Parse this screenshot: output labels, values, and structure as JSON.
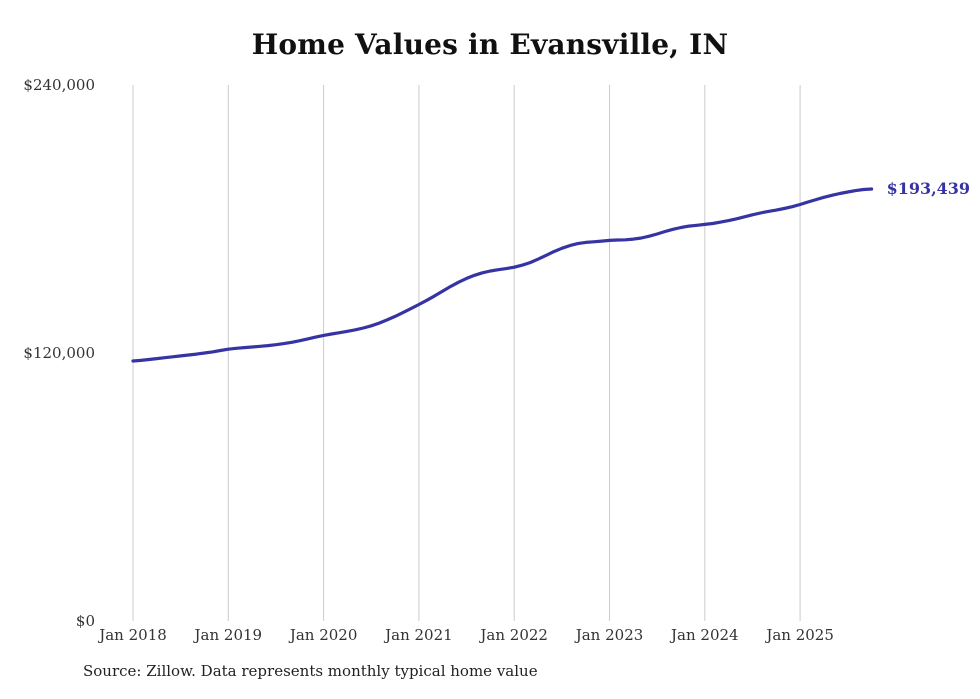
{
  "page": {
    "title": "Home Values in Evansville, IN",
    "source_note": "Source: Zillow. Data represents monthly typical home value"
  },
  "chart_data": {
    "type": "line",
    "title": "Home Values in Evansville, IN",
    "series_name": "Monthly typical home value",
    "start_month": "Jan 2018",
    "end_month": "Oct 2025",
    "x_tick_labels": [
      "Jan 2018",
      "Jan 2019",
      "Jan 2020",
      "Jan 2021",
      "Jan 2022",
      "Jan 2023",
      "Jan 2024",
      "Jan 2025"
    ],
    "y_tick_labels": [
      "$240,000",
      "$120,000",
      "$0"
    ],
    "ylim": [
      0,
      240000
    ],
    "grid": "vertical-only",
    "legend": "none",
    "line_color": "#3634a3",
    "grid_color": "#cccccc",
    "end_label": "$193,439",
    "end_value": 193439,
    "values": [
      116400,
      116700,
      117100,
      117500,
      117900,
      118300,
      118700,
      119100,
      119500,
      120000,
      120500,
      121100,
      121700,
      122100,
      122400,
      122700,
      123000,
      123300,
      123700,
      124200,
      124800,
      125500,
      126300,
      127100,
      127900,
      128500,
      129100,
      129700,
      130400,
      131200,
      132200,
      133400,
      134800,
      136400,
      138100,
      139900,
      141700,
      143600,
      145600,
      147700,
      149800,
      151700,
      153400,
      154800,
      155900,
      156700,
      157300,
      157800,
      158400,
      159300,
      160500,
      162000,
      163700,
      165400,
      166900,
      168100,
      169000,
      169500,
      169800,
      170100,
      170400,
      170600,
      170700,
      171000,
      171500,
      172300,
      173300,
      174400,
      175400,
      176200,
      176800,
      177200,
      177600,
      178000,
      178600,
      179300,
      180100,
      181000,
      181900,
      182700,
      183400,
      184000,
      184700,
      185500,
      186500,
      187600,
      188700,
      189700,
      190600,
      191400,
      192100,
      192700,
      193200,
      193439
    ]
  }
}
